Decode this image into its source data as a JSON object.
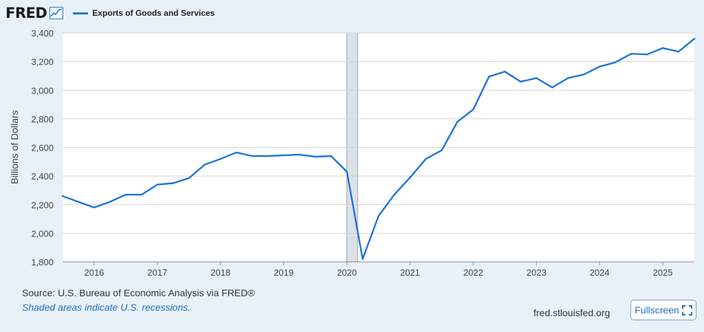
{
  "header": {
    "logo_text": "FRED",
    "legend_label": "Exports of Goods and Services",
    "series_color": "#1b74d8"
  },
  "footer": {
    "source": "Source: U.S. Bureau of Economic Analysis via FRED®",
    "recession_note": "Shaded areas indicate U.S. recessions.",
    "site_url": "fred.stlouisfed.org",
    "fullscreen_label": "Fullscreen"
  },
  "chart_data": {
    "type": "line",
    "title": "Exports of Goods and Services",
    "xlabel": "",
    "ylabel": "Billions of Dollars",
    "xlim": [
      2015.5,
      2025.5
    ],
    "ylim": [
      1800,
      3400
    ],
    "y_ticks": [
      1800,
      2000,
      2200,
      2400,
      2600,
      2800,
      3000,
      3200,
      3400
    ],
    "y_tick_labels": [
      "1,800",
      "2,000",
      "2,200",
      "2,400",
      "2,600",
      "2,800",
      "3,000",
      "3,200",
      "3,400"
    ],
    "x_ticks": [
      2016,
      2017,
      2018,
      2019,
      2020,
      2021,
      2022,
      2023,
      2024,
      2025
    ],
    "x_tick_labels": [
      "2016",
      "2017",
      "2018",
      "2019",
      "2020",
      "2021",
      "2022",
      "2023",
      "2024",
      "2025"
    ],
    "grid": true,
    "recessions": [
      {
        "start": 2020.0,
        "end": 2020.17
      }
    ],
    "series": [
      {
        "name": "Exports of Goods and Services",
        "color": "#1b74d8",
        "x": [
          2015.5,
          2015.75,
          2016.0,
          2016.25,
          2016.5,
          2016.75,
          2017.0,
          2017.25,
          2017.5,
          2017.75,
          2018.0,
          2018.25,
          2018.5,
          2018.75,
          2019.0,
          2019.25,
          2019.5,
          2019.75,
          2020.0,
          2020.25,
          2020.5,
          2020.75,
          2021.0,
          2021.25,
          2021.5,
          2021.75,
          2022.0,
          2022.25,
          2022.5,
          2022.75,
          2023.0,
          2023.25,
          2023.5,
          2023.75,
          2024.0,
          2024.25,
          2024.5,
          2024.75,
          2025.0,
          2025.25,
          2025.5
        ],
        "values": [
          2260,
          2220,
          2180,
          2220,
          2270,
          2270,
          2340,
          2350,
          2385,
          2480,
          2520,
          2565,
          2540,
          2540,
          2545,
          2550,
          2535,
          2540,
          2430,
          1820,
          2120,
          2270,
          2390,
          2520,
          2580,
          2780,
          2865,
          3095,
          3130,
          3060,
          3085,
          3020,
          3085,
          3110,
          3165,
          3195,
          3255,
          3250,
          3295,
          3270,
          3360
        ]
      }
    ]
  }
}
